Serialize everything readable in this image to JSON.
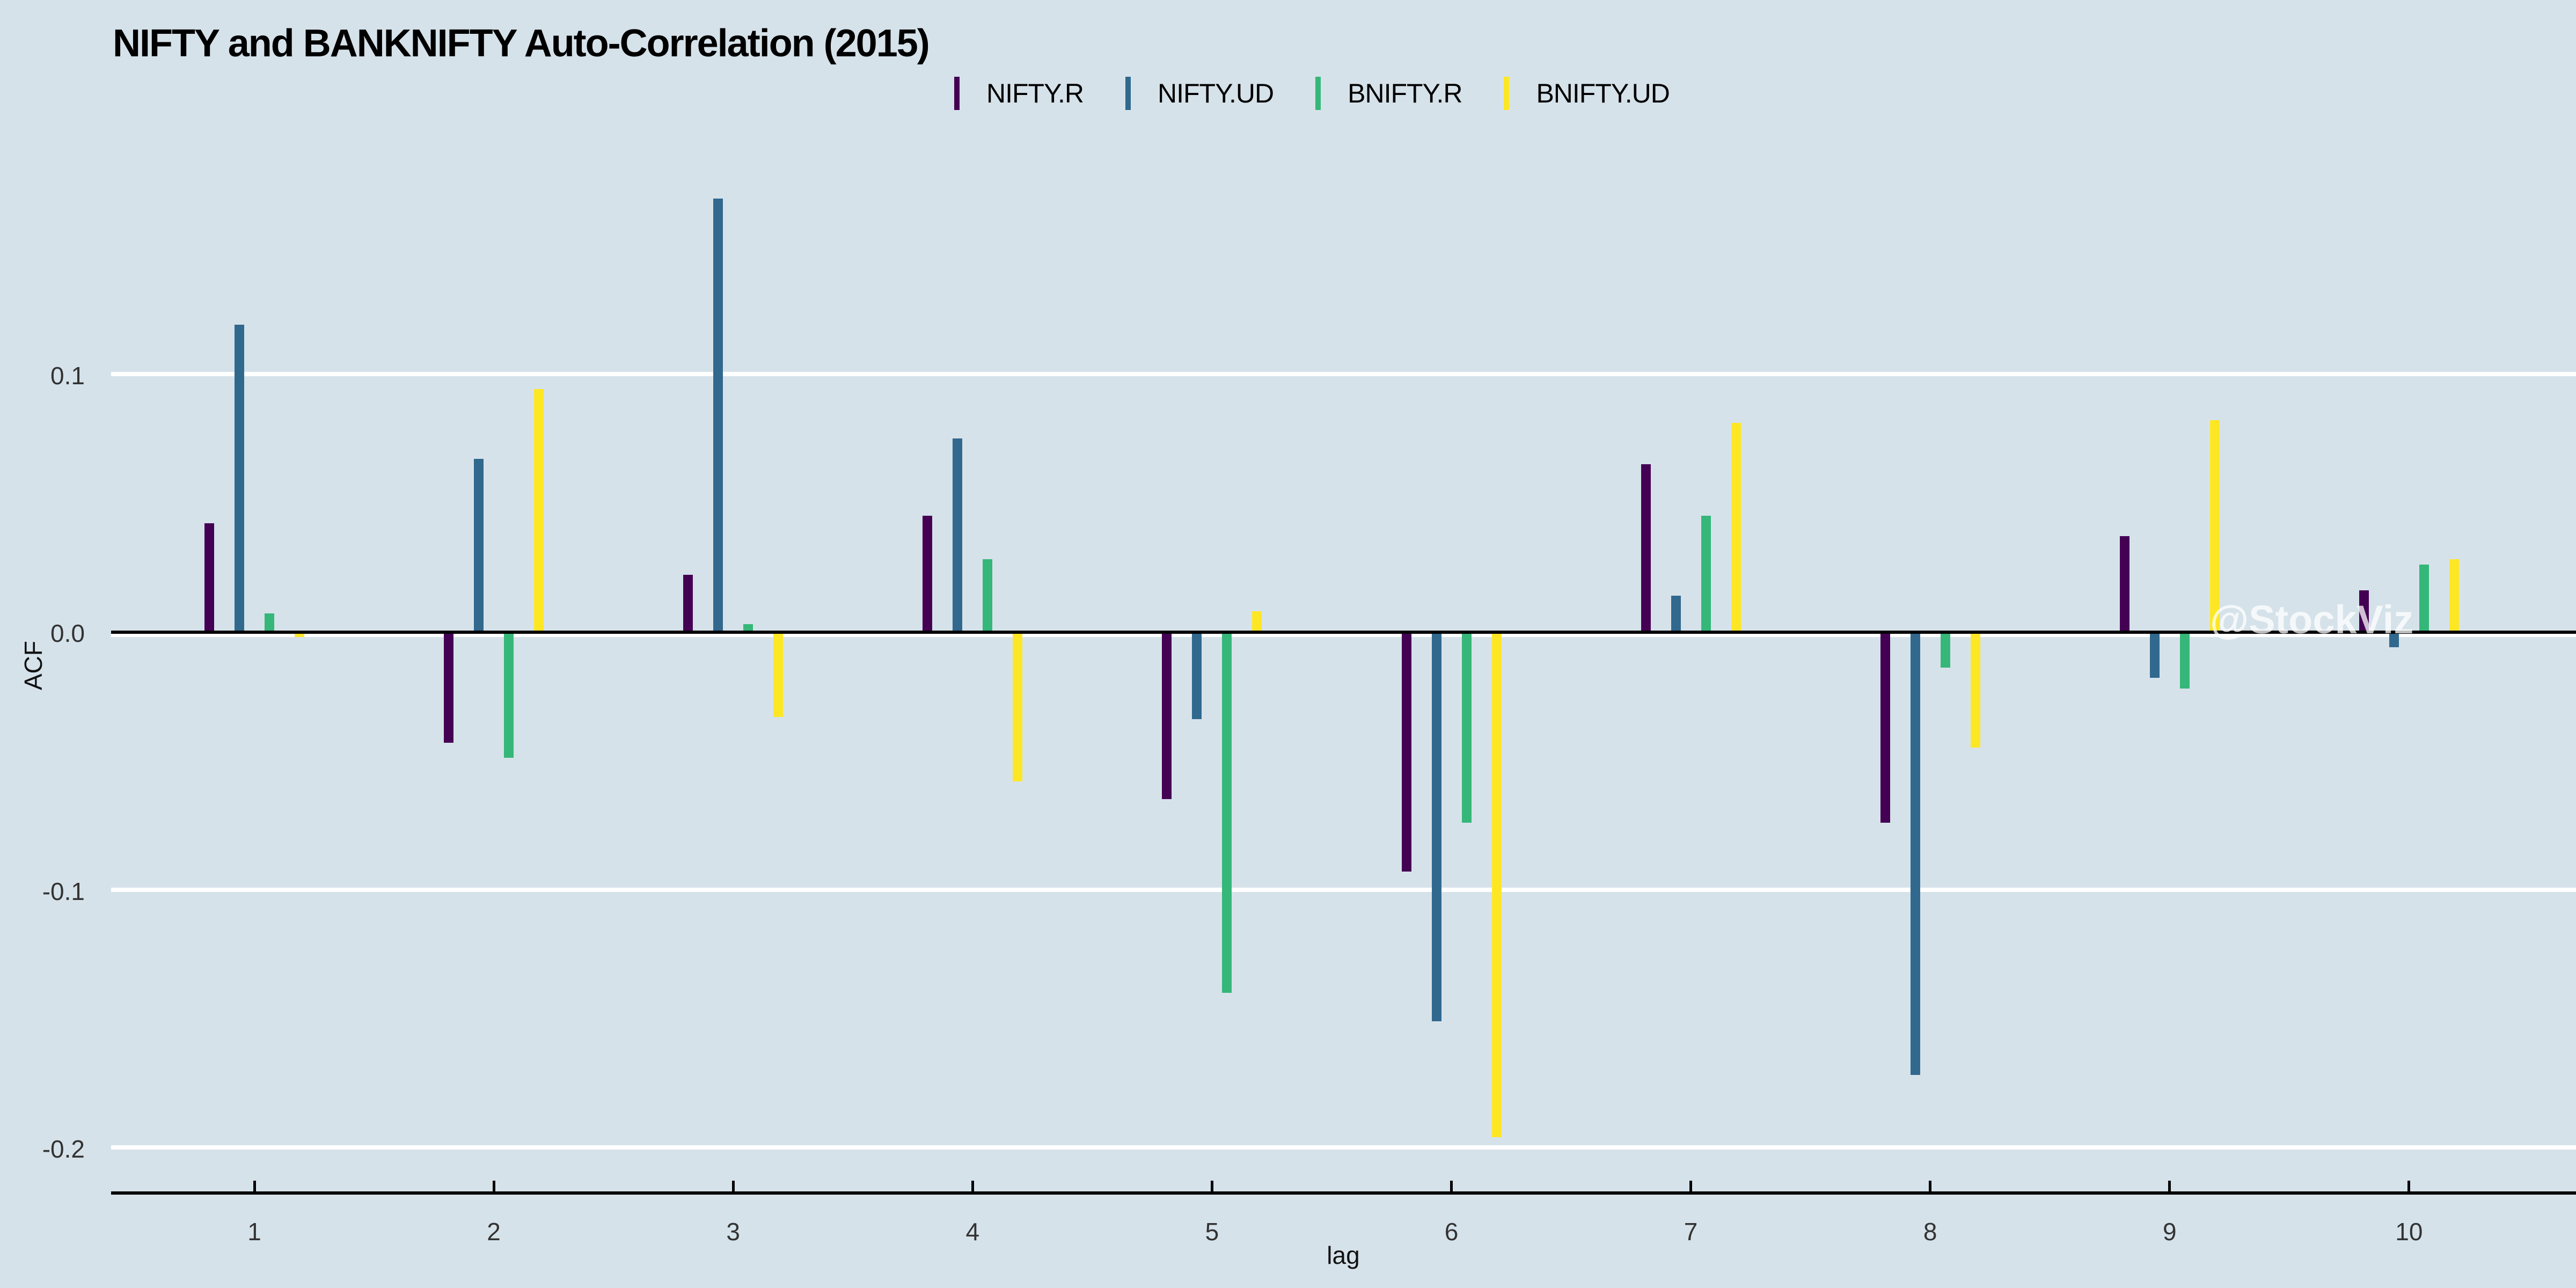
{
  "watermark": {
    "text": "@StockViz"
  },
  "colors": {
    "background": "#d6e2ea",
    "gridline": "#ffffff",
    "axis": "#000000",
    "tick_label": "#333333"
  },
  "chart_data": {
    "type": "bar",
    "title": "NIFTY and BANKNIFTY Auto-Correlation (2015)",
    "xlabel": "lag",
    "ylabel": "ACF",
    "categories": [
      1,
      2,
      3,
      4,
      5,
      6,
      7,
      8,
      9,
      10
    ],
    "x_tick_labels": [
      "1",
      "2",
      "3",
      "4",
      "5",
      "6",
      "7",
      "8",
      "9",
      "10"
    ],
    "y_ticks": [
      0.1,
      0.0,
      -0.1,
      -0.2
    ],
    "y_tick_labels": [
      "0.1",
      "0.0",
      "-0.1",
      "-0.2"
    ],
    "ylim": [
      -0.215,
      0.185
    ],
    "grid": true,
    "legend_position": "top",
    "zero_line": true,
    "series": [
      {
        "name": "NIFTY.R",
        "color": "#440154",
        "values": [
          0.042,
          -0.043,
          0.022,
          0.045,
          -0.065,
          -0.093,
          0.065,
          -0.074,
          0.037,
          0.016
        ]
      },
      {
        "name": "NIFTY.UD",
        "color": "#31688E",
        "values": [
          0.119,
          0.067,
          0.168,
          0.075,
          -0.034,
          -0.151,
          0.014,
          -0.172,
          -0.018,
          -0.006
        ]
      },
      {
        "name": "BNIFTY.R",
        "color": "#35B779",
        "values": [
          0.007,
          -0.049,
          0.003,
          0.028,
          -0.14,
          -0.074,
          0.045,
          -0.014,
          -0.022,
          0.026
        ]
      },
      {
        "name": "BNIFTY.UD",
        "color": "#FDE725",
        "values": [
          -0.002,
          0.094,
          -0.033,
          -0.058,
          0.008,
          -0.196,
          0.081,
          -0.045,
          0.082,
          0.028
        ]
      }
    ]
  }
}
